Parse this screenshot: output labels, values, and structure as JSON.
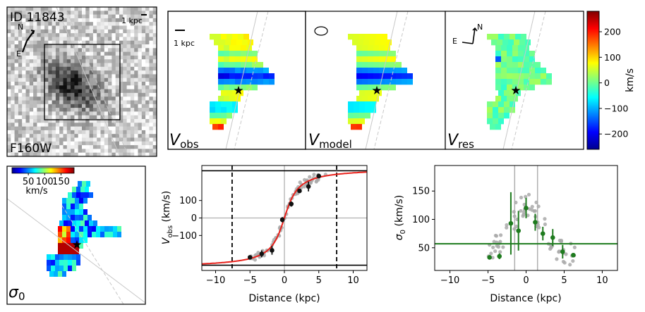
{
  "figure": {
    "galaxy_id": "ID 11843",
    "filter": "F160W",
    "scale_label": "1 kpc",
    "compass_north": "N",
    "compass_east": "E"
  },
  "panels": {
    "vobs_label": "V",
    "vobs_sub": "obs",
    "vmodel_label": "V",
    "vmodel_sub": "model",
    "vres_label": "V",
    "vres_sub": "res",
    "sigma_label": "σ",
    "sigma_sub": "0"
  },
  "colors": {
    "rotation_curve": "#e8211b",
    "dispersion_points": "#1e7b1e",
    "data_points": "#111111",
    "raw_points": "#a9a9a9"
  },
  "chart_data": [
    {
      "type": "colorbar",
      "name": "velocity",
      "label": "km/s",
      "range": [
        -260,
        280
      ],
      "ticks": [
        200,
        100,
        0,
        -100,
        -200
      ],
      "tick_labels": [
        "200",
        "100",
        "0",
        "−100",
        "−200"
      ],
      "colormap": "jet"
    },
    {
      "type": "colorbar",
      "name": "dispersion",
      "label": "km/s",
      "range": [
        0,
        190
      ],
      "ticks": [
        50,
        100,
        150
      ],
      "tick_labels": [
        "50",
        "100",
        "150"
      ],
      "colormap": "jet"
    },
    {
      "type": "line",
      "name": "rotation-curve",
      "xlabel": "Distance (kpc)",
      "ylabel": "V",
      "ylabel_sub": "obs",
      "ylabel_unit": " (km/s)",
      "xlim": [
        -12,
        12
      ],
      "ylim": [
        -300,
        300
      ],
      "xticks": [
        -10,
        -5,
        0,
        5,
        10
      ],
      "xtick_labels": [
        "−10",
        "−5",
        "0",
        "5",
        "10"
      ],
      "yticks": [
        -100,
        0,
        100
      ],
      "ytick_labels": [
        "−100",
        "0",
        "100"
      ],
      "hlines": [
        270,
        -270
      ],
      "vlines_dashed": [
        -7.6,
        7.6
      ],
      "model_vmax": 285,
      "model_rt": 1.5,
      "points": [
        {
          "x": -5.0,
          "y": -225,
          "err": 8
        },
        {
          "x": -3.3,
          "y": -205,
          "err": 20
        },
        {
          "x": -1.8,
          "y": -185,
          "err": 25
        },
        {
          "x": -0.3,
          "y": -10,
          "err": 15
        },
        {
          "x": 1.0,
          "y": 80,
          "err": 15
        },
        {
          "x": 2.2,
          "y": 155,
          "err": 12
        },
        {
          "x": 3.5,
          "y": 180,
          "err": 28
        },
        {
          "x": 5.0,
          "y": 240,
          "err": 12
        }
      ]
    },
    {
      "type": "scatter",
      "name": "dispersion-profile",
      "xlabel": "Distance (kpc)",
      "ylabel": "σ",
      "ylabel_sub": "0",
      "ylabel_unit": " (km/s)",
      "xlim": [
        -12,
        12
      ],
      "ylim": [
        10,
        195
      ],
      "xticks": [
        -10,
        -5,
        0,
        5,
        10
      ],
      "xtick_labels": [
        "−10",
        "−5",
        "0",
        "5",
        "10"
      ],
      "yticks": [
        50,
        100,
        150
      ],
      "ytick_labels": [
        "50",
        "100",
        "150"
      ],
      "hline": 57,
      "vlines": [
        -1.5,
        1.5
      ],
      "points": [
        {
          "x": -4.8,
          "y": 33,
          "err": 0
        },
        {
          "x": -3.5,
          "y": 35,
          "err": 5
        },
        {
          "x": -2.0,
          "y": 93,
          "err": 55
        },
        {
          "x": -1.0,
          "y": 80,
          "err": 35
        },
        {
          "x": 0.0,
          "y": 120,
          "err": 18
        },
        {
          "x": 1.2,
          "y": 95,
          "err": 15
        },
        {
          "x": 2.2,
          "y": 75,
          "err": 12
        },
        {
          "x": 3.5,
          "y": 68,
          "err": 15
        },
        {
          "x": 4.8,
          "y": 43,
          "err": 12
        },
        {
          "x": 6.2,
          "y": 37,
          "err": 3
        }
      ]
    }
  ]
}
